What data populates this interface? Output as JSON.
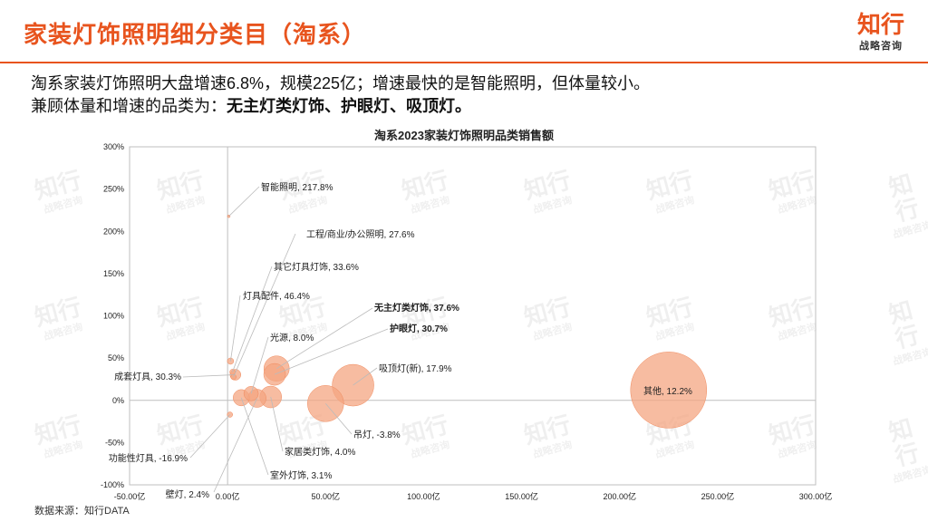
{
  "header": {
    "title": "家装灯饰照明细分类目（淘系）",
    "logo_main": "知行",
    "logo_sub": "战略咨询"
  },
  "summary": {
    "line1": "淘系家装灯饰照明大盘增速6.8%，规模225亿；增速最快的是智能照明，但体量较小。",
    "line2_prefix": "兼顾体量和增速的品类为：",
    "line2_bold": "无主灯类灯饰、护眼灯、吸顶灯。"
  },
  "footer": {
    "source": "数据来源：知行DATA"
  },
  "watermark": {
    "main": "知行",
    "sub": "战略咨询"
  },
  "colors": {
    "accent": "#E8541E",
    "bubble": "#F4A582",
    "axis": "#BFBFBF"
  },
  "chart_data": {
    "type": "scatter",
    "title": "淘系2023家装灯饰照明品类销售额",
    "xlim": [
      -50,
      300
    ],
    "ylim": [
      -100,
      300
    ],
    "x_ticks": [
      "-50.00亿",
      "0.00亿",
      "50.00亿",
      "100.00亿",
      "150.00亿",
      "200.00亿",
      "250.00亿",
      "300.00亿"
    ],
    "x_tick_values": [
      -50,
      0,
      50,
      100,
      150,
      200,
      250,
      300
    ],
    "y_ticks": [
      "300%",
      "250%",
      "200%",
      "150%",
      "100%",
      "50%",
      "0%",
      "-50%",
      "-100%"
    ],
    "y_tick_values": [
      300,
      250,
      200,
      150,
      100,
      50,
      0,
      -50,
      -100
    ],
    "points": [
      {
        "label": "智能照明, 217.8%",
        "x": 0.6,
        "y": 217.8,
        "bold": false
      },
      {
        "label": "工程/商业/办公照明, 27.6%",
        "x": 3,
        "y": 27.6,
        "bold": false
      },
      {
        "label": "其它灯具灯饰, 33.6%",
        "x": 2.5,
        "y": 33.6,
        "bold": false
      },
      {
        "label": "灯具配件, 46.4%",
        "x": 1.5,
        "y": 46.4,
        "bold": false
      },
      {
        "label": "无主灯类灯饰, 37.6%",
        "x": 25,
        "y": 37.6,
        "bold": true
      },
      {
        "label": "护眼灯, 30.7%",
        "x": 24,
        "y": 30.7,
        "bold": true
      },
      {
        "label": "光源, 8.0%",
        "x": 12,
        "y": 8.0,
        "bold": false
      },
      {
        "label": "吸顶灯(新), 17.9%",
        "x": 64,
        "y": 17.9,
        "bold": false
      },
      {
        "label": "成套灯具, 30.3%",
        "x": 4,
        "y": 30.3,
        "bold": false
      },
      {
        "label": "其他, 12.2%",
        "x": 225,
        "y": 12.2,
        "bold": false
      },
      {
        "label": "吊灯, -3.8%",
        "x": 50,
        "y": -3.8,
        "bold": false
      },
      {
        "label": "家居类灯饰, 4.0%",
        "x": 22,
        "y": 4.0,
        "bold": false
      },
      {
        "label": "功能性灯具, -16.9%",
        "x": 1.2,
        "y": -16.9,
        "bold": false
      },
      {
        "label": "室外灯饰, 3.1%",
        "x": 7,
        "y": 3.1,
        "bold": false
      },
      {
        "label": "壁灯, 2.4%",
        "x": 15,
        "y": 2.4,
        "bold": false
      }
    ]
  }
}
